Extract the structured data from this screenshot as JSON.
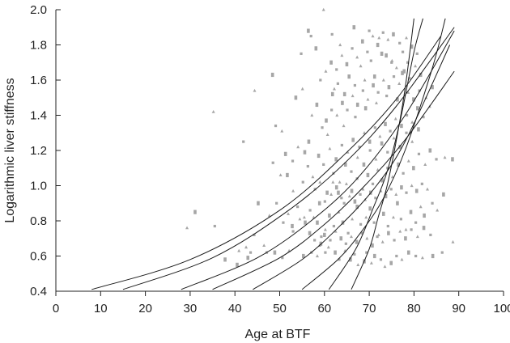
{
  "chart_data": {
    "type": "scatter",
    "xlabel": "Age at BTF",
    "ylabel": "Logarithmic liver stiffness",
    "xlim": [
      0,
      100
    ],
    "ylim": [
      0.4,
      2.0
    ],
    "x_ticks": [
      "0",
      "10",
      "20",
      "30",
      "40",
      "50",
      "60",
      "70",
      "80",
      "90",
      "100"
    ],
    "y_ticks": [
      "0.4",
      "0.6",
      "0.8",
      "1.0",
      "1.2",
      "1.4",
      "1.6",
      "1.8",
      "2.0"
    ],
    "grid": false,
    "colors": {
      "points": "#a6a6a6",
      "curves": "#1a1a1a",
      "axis": "#222222"
    },
    "curves": [
      {
        "points": [
          [
            8,
            0.41
          ],
          [
            30,
            0.58
          ],
          [
            50,
            0.86
          ],
          [
            65,
            1.19
          ],
          [
            76,
            1.49
          ],
          [
            86,
            1.85
          ]
        ]
      },
      {
        "points": [
          [
            15,
            0.41
          ],
          [
            35,
            0.59
          ],
          [
            52,
            0.86
          ],
          [
            65,
            1.14
          ],
          [
            76,
            1.45
          ],
          [
            89,
            1.9
          ]
        ]
      },
      {
        "points": [
          [
            28,
            0.41
          ],
          [
            45,
            0.59
          ],
          [
            58,
            0.82
          ],
          [
            68,
            1.06
          ],
          [
            78,
            1.4
          ],
          [
            89,
            1.88
          ]
        ]
      },
      {
        "points": [
          [
            35,
            0.41
          ],
          [
            50,
            0.59
          ],
          [
            60,
            0.78
          ],
          [
            69,
            1.0
          ],
          [
            78,
            1.26
          ],
          [
            89,
            1.65
          ]
        ]
      },
      {
        "points": [
          [
            44,
            0.41
          ],
          [
            55,
            0.58
          ],
          [
            63,
            0.76
          ],
          [
            71,
            0.98
          ],
          [
            78,
            1.25
          ],
          [
            88,
            1.8
          ]
        ]
      },
      {
        "points": [
          [
            55,
            0.41
          ],
          [
            63,
            0.58
          ],
          [
            68,
            0.73
          ],
          [
            73,
            0.92
          ],
          [
            78,
            1.2
          ],
          [
            84,
            1.66
          ],
          [
            87,
            1.95
          ]
        ]
      },
      {
        "points": [
          [
            61,
            0.41
          ],
          [
            67,
            0.64
          ],
          [
            71,
            0.88
          ],
          [
            74,
            1.08
          ],
          [
            77,
            1.38
          ],
          [
            80,
            1.76
          ],
          [
            82,
            1.95
          ]
        ]
      },
      {
        "points": [
          [
            66,
            0.41
          ],
          [
            70,
            0.64
          ],
          [
            72,
            0.82
          ],
          [
            74,
            1.0
          ],
          [
            76,
            1.25
          ],
          [
            78,
            1.55
          ],
          [
            80,
            1.95
          ]
        ]
      }
    ],
    "points": [
      [
        35.2,
        1.42
      ],
      [
        31.1,
        0.85
      ],
      [
        35.5,
        0.77
      ],
      [
        29.3,
        0.76
      ],
      [
        37.8,
        0.58
      ],
      [
        41.9,
        1.25
      ],
      [
        44.4,
        1.54
      ],
      [
        48.4,
        1.63
      ],
      [
        49.1,
        1.34
      ],
      [
        50.5,
        1.31
      ],
      [
        53.6,
        1.5
      ],
      [
        54.8,
        1.75
      ],
      [
        55.1,
        1.55
      ],
      [
        56.4,
        1.88
      ],
      [
        57.0,
        1.85
      ],
      [
        59.8,
        2.0
      ],
      [
        56.5,
        1.25
      ],
      [
        55.2,
        1.02
      ],
      [
        53.0,
        0.97
      ],
      [
        51.7,
        1.06
      ],
      [
        49.3,
        0.9
      ],
      [
        47.7,
        0.83
      ],
      [
        45.2,
        0.9
      ],
      [
        44.3,
        0.72
      ],
      [
        42.5,
        0.65
      ],
      [
        42.9,
        0.59
      ],
      [
        43.5,
        0.62
      ],
      [
        40.9,
        0.63
      ],
      [
        40.5,
        0.55
      ],
      [
        47.1,
        0.62
      ],
      [
        46.5,
        0.66
      ],
      [
        48.9,
        0.62
      ],
      [
        50.6,
        0.59
      ],
      [
        52.1,
        0.63
      ],
      [
        55.3,
        0.6
      ],
      [
        57.1,
        0.62
      ],
      [
        58.4,
        0.6
      ],
      [
        59.2,
        0.67
      ],
      [
        60.2,
        0.62
      ],
      [
        60.9,
        0.65
      ],
      [
        62.4,
        0.62
      ],
      [
        63.3,
        0.58
      ],
      [
        64.6,
        0.63
      ],
      [
        65.8,
        0.58
      ],
      [
        66.7,
        0.61
      ],
      [
        67.5,
        0.55
      ],
      [
        68.9,
        0.57
      ],
      [
        69.4,
        0.62
      ],
      [
        70.5,
        0.56
      ],
      [
        71.2,
        0.6
      ],
      [
        72.6,
        0.58
      ],
      [
        73.5,
        0.54
      ],
      [
        74.9,
        0.56
      ],
      [
        76.1,
        0.6
      ],
      [
        77.3,
        0.58
      ],
      [
        78.8,
        0.62
      ],
      [
        80.4,
        0.6
      ],
      [
        81.9,
        0.59
      ],
      [
        84.2,
        0.6
      ],
      [
        86.3,
        0.62
      ],
      [
        88.7,
        0.68
      ],
      [
        58.4,
        0.79
      ],
      [
        59.3,
        0.71
      ],
      [
        60.2,
        0.75
      ],
      [
        61.1,
        0.83
      ],
      [
        62.1,
        0.77
      ],
      [
        63.2,
        0.85
      ],
      [
        64.1,
        0.79
      ],
      [
        65.3,
        0.73
      ],
      [
        66.2,
        0.81
      ],
      [
        67.3,
        0.88
      ],
      [
        68.1,
        0.78
      ],
      [
        69.3,
        0.82
      ],
      [
        70.2,
        0.87
      ],
      [
        71.1,
        0.79
      ],
      [
        72.1,
        0.72
      ],
      [
        73.2,
        0.84
      ],
      [
        74.2,
        0.77
      ],
      [
        75.4,
        0.82
      ],
      [
        76.3,
        0.9
      ],
      [
        77.1,
        0.81
      ],
      [
        78.2,
        0.75
      ],
      [
        79.3,
        0.85
      ],
      [
        80.4,
        0.79
      ],
      [
        81.5,
        0.88
      ],
      [
        82.3,
        0.83
      ],
      [
        84.1,
        0.9
      ],
      [
        85.2,
        0.86
      ],
      [
        86.6,
        0.95
      ],
      [
        53.0,
        0.74
      ],
      [
        54.5,
        0.81
      ],
      [
        55.7,
        0.79
      ],
      [
        56.8,
        0.86
      ],
      [
        57.6,
        0.82
      ],
      [
        58.9,
        0.9
      ],
      [
        60.1,
        0.91
      ],
      [
        61.5,
        0.95
      ],
      [
        62.7,
        0.99
      ],
      [
        63.8,
        0.93
      ],
      [
        64.9,
        1.01
      ],
      [
        66.1,
        0.97
      ],
      [
        67.3,
        1.04
      ],
      [
        68.6,
        0.98
      ],
      [
        69.7,
        1.06
      ],
      [
        70.8,
        1.01
      ],
      [
        71.9,
        1.09
      ],
      [
        72.9,
        1.03
      ],
      [
        74.1,
        1.1
      ],
      [
        75.2,
        1.05
      ],
      [
        76.5,
        1.12
      ],
      [
        77.6,
        1.07
      ],
      [
        78.8,
        1.14
      ],
      [
        79.9,
        1.1
      ],
      [
        81.1,
        1.18
      ],
      [
        82.5,
        1.12
      ],
      [
        83.6,
        1.2
      ],
      [
        85.0,
        1.15
      ],
      [
        86.9,
        1.16
      ],
      [
        88.6,
        1.15
      ],
      [
        56.3,
        1.11
      ],
      [
        57.4,
        1.05
      ],
      [
        58.7,
        1.17
      ],
      [
        59.8,
        1.12
      ],
      [
        61.2,
        1.21
      ],
      [
        62.6,
        1.15
      ],
      [
        63.9,
        1.23
      ],
      [
        65.2,
        1.19
      ],
      [
        66.4,
        1.26
      ],
      [
        67.8,
        1.22
      ],
      [
        68.9,
        1.3
      ],
      [
        70.1,
        1.25
      ],
      [
        71.3,
        1.33
      ],
      [
        72.4,
        1.28
      ],
      [
        73.6,
        1.35
      ],
      [
        74.7,
        1.31
      ],
      [
        75.9,
        1.38
      ],
      [
        77.2,
        1.34
      ],
      [
        78.4,
        1.4
      ],
      [
        79.6,
        1.36
      ],
      [
        80.8,
        1.44
      ],
      [
        82.1,
        1.39
      ],
      [
        83.5,
        1.45
      ],
      [
        60.4,
        1.37
      ],
      [
        61.6,
        1.43
      ],
      [
        62.8,
        1.4
      ],
      [
        64.0,
        1.47
      ],
      [
        65.1,
        1.43
      ],
      [
        66.3,
        1.51
      ],
      [
        67.4,
        1.46
      ],
      [
        68.6,
        1.54
      ],
      [
        69.7,
        1.49
      ],
      [
        70.9,
        1.57
      ],
      [
        72.0,
        1.53
      ],
      [
        73.2,
        1.6
      ],
      [
        74.4,
        1.56
      ],
      [
        75.5,
        1.62
      ],
      [
        76.7,
        1.58
      ],
      [
        77.8,
        1.65
      ],
      [
        79.0,
        1.61
      ],
      [
        80.3,
        1.68
      ],
      [
        81.5,
        1.63
      ],
      [
        59.1,
        1.6
      ],
      [
        60.3,
        1.65
      ],
      [
        61.5,
        1.7
      ],
      [
        62.7,
        1.66
      ],
      [
        63.9,
        1.74
      ],
      [
        65.0,
        1.69
      ],
      [
        66.2,
        1.78
      ],
      [
        67.3,
        1.73
      ],
      [
        68.5,
        1.82
      ],
      [
        69.6,
        1.76
      ],
      [
        70.8,
        1.85
      ],
      [
        71.9,
        1.8
      ],
      [
        73.1,
        1.87
      ],
      [
        74.2,
        1.83
      ],
      [
        75.4,
        1.86
      ],
      [
        76.8,
        1.81
      ],
      [
        78.3,
        1.84
      ],
      [
        79.5,
        1.79
      ],
      [
        80.7,
        1.75
      ],
      [
        57.2,
        1.4
      ],
      [
        58.3,
        1.46
      ],
      [
        59.5,
        1.33
      ],
      [
        60.7,
        1.29
      ],
      [
        61.8,
        1.52
      ],
      [
        63.0,
        1.58
      ],
      [
        64.3,
        1.34
      ],
      [
        65.5,
        1.62
      ],
      [
        66.9,
        1.39
      ],
      [
        68.1,
        1.68
      ],
      [
        69.2,
        1.44
      ],
      [
        70.4,
        1.71
      ],
      [
        71.6,
        1.47
      ],
      [
        72.8,
        1.75
      ],
      [
        73.9,
        1.51
      ],
      [
        75.1,
        1.71
      ],
      [
        76.3,
        1.49
      ],
      [
        77.5,
        1.76
      ],
      [
        78.7,
        1.53
      ],
      [
        79.9,
        1.49
      ],
      [
        81.2,
        1.54
      ],
      [
        82.7,
        1.5
      ],
      [
        84.1,
        1.56
      ],
      [
        48.5,
        1.13
      ],
      [
        50.2,
        1.06
      ],
      [
        51.3,
        1.18
      ],
      [
        52.9,
        1.14
      ],
      [
        54.1,
        1.22
      ],
      [
        55.6,
        1.19
      ],
      [
        57.9,
        0.98
      ],
      [
        59.0,
        1.02
      ],
      [
        60.6,
        0.96
      ],
      [
        62.0,
        1.07
      ],
      [
        63.4,
        1.02
      ],
      [
        64.7,
        1.12
      ],
      [
        66.0,
        1.08
      ],
      [
        67.4,
        1.16
      ],
      [
        68.8,
        1.12
      ],
      [
        70.2,
        1.2
      ],
      [
        71.5,
        1.15
      ],
      [
        72.8,
        1.24
      ],
      [
        74.1,
        1.19
      ],
      [
        75.5,
        1.27
      ],
      [
        76.9,
        1.22
      ],
      [
        78.3,
        1.3
      ],
      [
        79.6,
        1.25
      ],
      [
        81.0,
        1.32
      ],
      [
        50.8,
        0.79
      ],
      [
        51.9,
        0.84
      ],
      [
        52.8,
        0.77
      ],
      [
        54.0,
        0.88
      ],
      [
        55.5,
        0.82
      ],
      [
        56.7,
        0.73
      ],
      [
        57.8,
        0.69
      ],
      [
        58.9,
        0.66
      ],
      [
        60.0,
        0.72
      ],
      [
        61.3,
        0.69
      ],
      [
        62.5,
        0.74
      ],
      [
        63.7,
        0.7
      ],
      [
        64.8,
        0.67
      ],
      [
        66.0,
        0.71
      ],
      [
        67.2,
        0.68
      ],
      [
        68.4,
        0.73
      ],
      [
        69.5,
        0.7
      ],
      [
        70.7,
        0.66
      ],
      [
        71.8,
        0.71
      ],
      [
        73.0,
        0.68
      ],
      [
        74.3,
        0.73
      ],
      [
        75.6,
        0.69
      ],
      [
        76.9,
        0.74
      ],
      [
        78.1,
        0.7
      ],
      [
        79.4,
        0.75
      ],
      [
        80.8,
        0.71
      ],
      [
        82.2,
        0.76
      ],
      [
        83.7,
        0.72
      ],
      [
        61.9,
        1.02
      ],
      [
        63.1,
        0.96
      ],
      [
        64.4,
        0.9
      ],
      [
        65.6,
        0.94
      ],
      [
        66.8,
        0.91
      ],
      [
        68.0,
        0.95
      ],
      [
        69.1,
        0.92
      ],
      [
        70.3,
        0.96
      ],
      [
        71.4,
        0.93
      ],
      [
        72.6,
        0.97
      ],
      [
        73.7,
        0.94
      ],
      [
        74.9,
        0.98
      ],
      [
        76.0,
        0.95
      ],
      [
        77.2,
        0.99
      ],
      [
        78.3,
        0.96
      ],
      [
        79.5,
        1.0
      ],
      [
        80.6,
        0.97
      ],
      [
        81.8,
        1.01
      ],
      [
        83.0,
        0.98
      ],
      [
        58.1,
        1.78
      ],
      [
        61.7,
        1.86
      ],
      [
        63.5,
        1.8
      ],
      [
        66.6,
        1.9
      ],
      [
        70.0,
        1.88
      ],
      [
        72.2,
        1.84
      ],
      [
        73.8,
        1.74
      ],
      [
        75.0,
        1.7
      ],
      [
        76.1,
        1.67
      ],
      [
        77.4,
        1.64
      ],
      [
        78.6,
        1.7
      ],
      [
        62.2,
        1.55
      ],
      [
        64.5,
        1.52
      ],
      [
        66.8,
        1.57
      ],
      [
        69.0,
        1.6
      ],
      [
        71.2,
        1.62
      ]
    ]
  }
}
